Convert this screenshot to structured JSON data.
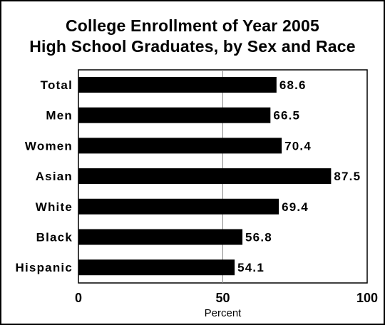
{
  "chart_data": {
    "type": "bar",
    "orientation": "horizontal",
    "title_lines": [
      "College Enrollment of Year 2005",
      "High School Graduates, by Sex and Race"
    ],
    "categories": [
      "Total",
      "Men",
      "Women",
      "Asian",
      "White",
      "Black",
      "Hispanic"
    ],
    "values": [
      68.6,
      66.5,
      70.4,
      87.5,
      69.4,
      56.8,
      54.1
    ],
    "value_labels": [
      "68.6",
      "66.5",
      "70.4",
      "87.5",
      "69.4",
      "56.8",
      "54.1"
    ],
    "xlabel": "Percent",
    "ylabel": "",
    "xlim": [
      0,
      100
    ],
    "ticks": [
      "0",
      "50",
      "100"
    ],
    "tick_values": [
      0,
      50,
      100
    ],
    "reference_line": 50,
    "grid": false,
    "legend": "none",
    "colors": {
      "bar": "#000000",
      "axis": "#000000",
      "reference_line": "#888888",
      "background": "#ffffff"
    }
  }
}
